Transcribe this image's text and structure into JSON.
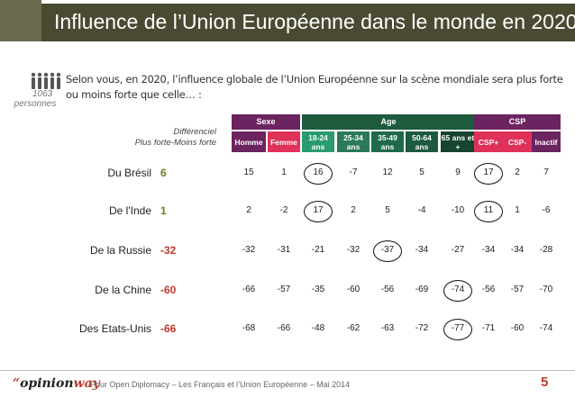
{
  "title": "Influence de l’Union Européenne dans le monde en 2020",
  "sample": {
    "number": "1063",
    "label": "personnes"
  },
  "question": "Selon vous, en 2020, l’influence globale de l’Union Européenne sur la scène mondiale sera plus forte ou moins forte que celle… :",
  "diff_header": {
    "line1": "Différenciel",
    "line2": "Plus forte-Moins forte"
  },
  "groups": [
    {
      "label": "Sexe",
      "color": "#6b2460"
    },
    {
      "label": "Age",
      "color": "#1e5a3e"
    },
    {
      "label": "CSP",
      "color": "#6b2460"
    }
  ],
  "subheaders": [
    {
      "label": "Homme",
      "color": "#6b2460"
    },
    {
      "label": "Femme",
      "color": "#e0315a"
    },
    {
      "label": "18-24 ans",
      "color": "#2a9a70"
    },
    {
      "label": "25-34 ans",
      "color": "#2a7a58"
    },
    {
      "label": "35-49 ans",
      "color": "#1e6a4a"
    },
    {
      "label": "50-64 ans",
      "color": "#1e5a3e"
    },
    {
      "label": "65 ans et +",
      "color": "#16442e"
    },
    {
      "label": "CSP+",
      "color": "#e0315a"
    },
    {
      "label": "CSP-",
      "color": "#e0315a"
    },
    {
      "label": "Inactif",
      "color": "#6b2460"
    }
  ],
  "colors": {
    "positive": "#6b7a1f",
    "negative": "#c0392b"
  },
  "chart_data": {
    "type": "table",
    "columns": [
      "Homme",
      "Femme",
      "18-24 ans",
      "25-34 ans",
      "35-49 ans",
      "50-64 ans",
      "65 ans et +",
      "CSP+",
      "CSP-",
      "Inactif"
    ],
    "rows": [
      {
        "label": "Du Brésil",
        "diff": "6",
        "values": [
          "15",
          "1",
          "16",
          "-7",
          "12",
          "5",
          "9",
          "17",
          "2",
          "7"
        ],
        "circled": [
          2,
          7
        ]
      },
      {
        "label": "De l'Inde",
        "diff": "1",
        "values": [
          "2",
          "-2",
          "17",
          "2",
          "5",
          "-4",
          "-10",
          "11",
          "1",
          "-6"
        ],
        "circled": [
          2,
          7
        ]
      },
      {
        "label": "De la Russie",
        "diff": "-32",
        "values": [
          "-32",
          "-31",
          "-21",
          "-32",
          "-37",
          "-34",
          "-27",
          "-34",
          "-34",
          "-28"
        ],
        "circled": [
          4
        ]
      },
      {
        "label": "De la Chine",
        "diff": "-60",
        "values": [
          "-66",
          "-57",
          "-35",
          "-60",
          "-56",
          "-69",
          "-74",
          "-56",
          "-57",
          "-70"
        ],
        "circled": [
          6
        ]
      },
      {
        "label": "Des Etats-Unis",
        "diff": "-66",
        "values": [
          "-68",
          "-66",
          "-48",
          "-62",
          "-63",
          "-72",
          "-77",
          "-71",
          "-60",
          "-74"
        ],
        "circled": [
          6
        ]
      }
    ]
  },
  "footer": {
    "logo_text": "opinionway",
    "text": "Pour Open Diplomacy – Les Français et l’Union Européenne – Mai 2014",
    "page": "5"
  }
}
